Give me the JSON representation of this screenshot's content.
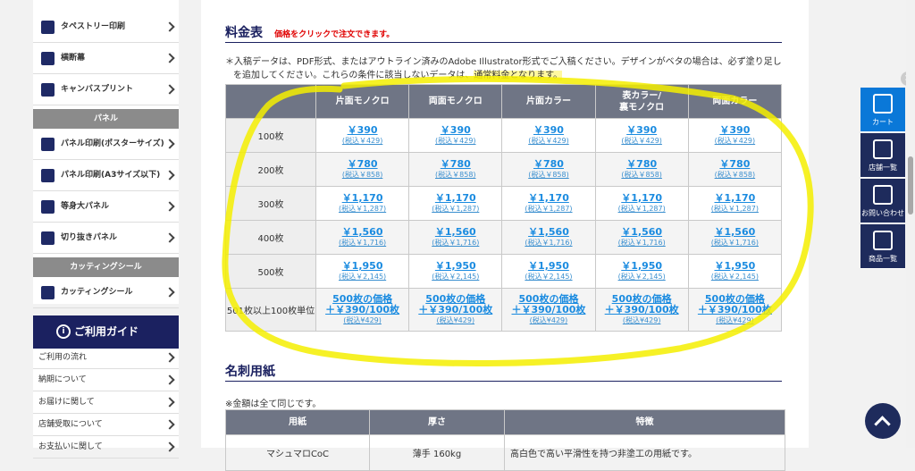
{
  "sidebar": {
    "menu": [
      "タペストリー印刷",
      "横断幕",
      "キャンバスプリント"
    ],
    "panel": {
      "title": "パネル",
      "items": [
        "パネル印刷(ポスターサイズ)",
        "パネル印刷(A3サイズ以下)",
        "等身大パネル",
        "切り抜きパネル"
      ]
    },
    "cutting": {
      "title": "カッティングシール",
      "items": [
        "カッティングシール"
      ]
    },
    "guide": {
      "title": "ご利用ガイド",
      "items": [
        "ご利用の流れ",
        "納期について",
        "お届けに関して",
        "店舗受取について",
        "お支払いに関して"
      ]
    }
  },
  "price": {
    "title": "料金表",
    "note_red": "価格をクリックで注文できます。",
    "notice": "＊入稿データは、PDF形式、またはアウトライン済みのAdobe Illustrator形式でご入稿ください。デザインがベタの場合は、必ず塗り足しを追加してください。これらの条件に該当しないデータは、",
    "notice_highlight": "通常料金となります。",
    "headers": [
      [
        "片面モノクロ"
      ],
      [
        "両面モノクロ"
      ],
      [
        "片面カラー"
      ],
      [
        "表カラー/",
        "裏モノクロ"
      ],
      [
        "両面カラー"
      ]
    ],
    "rows": [
      {
        "label": "100枚",
        "cells": [
          [
            "￥390",
            "(税込￥429)"
          ],
          [
            "￥390",
            "(税込￥429)"
          ],
          [
            "￥390",
            "(税込￥429)"
          ],
          [
            "￥390",
            "(税込￥429)"
          ],
          [
            "￥390",
            "(税込￥429)"
          ]
        ]
      },
      {
        "label": "200枚",
        "cells": [
          [
            "￥780",
            "(税込￥858)"
          ],
          [
            "￥780",
            "(税込￥858)"
          ],
          [
            "￥780",
            "(税込￥858)"
          ],
          [
            "￥780",
            "(税込￥858)"
          ],
          [
            "￥780",
            "(税込￥858)"
          ]
        ]
      },
      {
        "label": "300枚",
        "cells": [
          [
            "￥1,170",
            "(税込￥1,287)"
          ],
          [
            "￥1,170",
            "(税込￥1,287)"
          ],
          [
            "￥1,170",
            "(税込￥1,287)"
          ],
          [
            "￥1,170",
            "(税込￥1,287)"
          ],
          [
            "￥1,170",
            "(税込￥1,287)"
          ]
        ]
      },
      {
        "label": "400枚",
        "cells": [
          [
            "￥1,560",
            "(税込￥1,716)"
          ],
          [
            "￥1,560",
            "(税込￥1,716)"
          ],
          [
            "￥1,560",
            "(税込￥1,716)"
          ],
          [
            "￥1,560",
            "(税込￥1,716)"
          ],
          [
            "￥1,560",
            "(税込￥1,716)"
          ]
        ]
      },
      {
        "label": "500枚",
        "cells": [
          [
            "￥1,950",
            "(税込￥2,145)"
          ],
          [
            "￥1,950",
            "(税込￥2,145)"
          ],
          [
            "￥1,950",
            "(税込￥2,145)"
          ],
          [
            "￥1,950",
            "(税込￥2,145)"
          ],
          [
            "￥1,950",
            "(税込￥2,145)"
          ]
        ]
      },
      {
        "label": "501枚以上100枚単位",
        "cells": [
          [
            "500枚の価格",
            "＋￥390/100枚",
            "(税込¥429)"
          ],
          [
            "500枚の価格",
            "＋￥390/100枚",
            "(税込¥429)"
          ],
          [
            "500枚の価格",
            "＋￥390/100枚",
            "(税込¥429)"
          ],
          [
            "500枚の価格",
            "＋￥390/100枚",
            "(税込¥429)"
          ],
          [
            "500枚の価格",
            "＋￥390/100枚",
            "(税込¥429)"
          ]
        ]
      }
    ]
  },
  "paper": {
    "title": "名刺用紙",
    "note": "※金額は全て同じです。",
    "headers": [
      "用紙",
      "厚さ",
      "特徴"
    ],
    "rows": [
      [
        "マシュマロCoC",
        "薄手 160kg",
        "高白色で高い平滑性を持つ非塗工の用紙です。"
      ]
    ]
  },
  "float": [
    "カート",
    "店舗一覧",
    "お問い合わせ",
    "商品一覧"
  ]
}
